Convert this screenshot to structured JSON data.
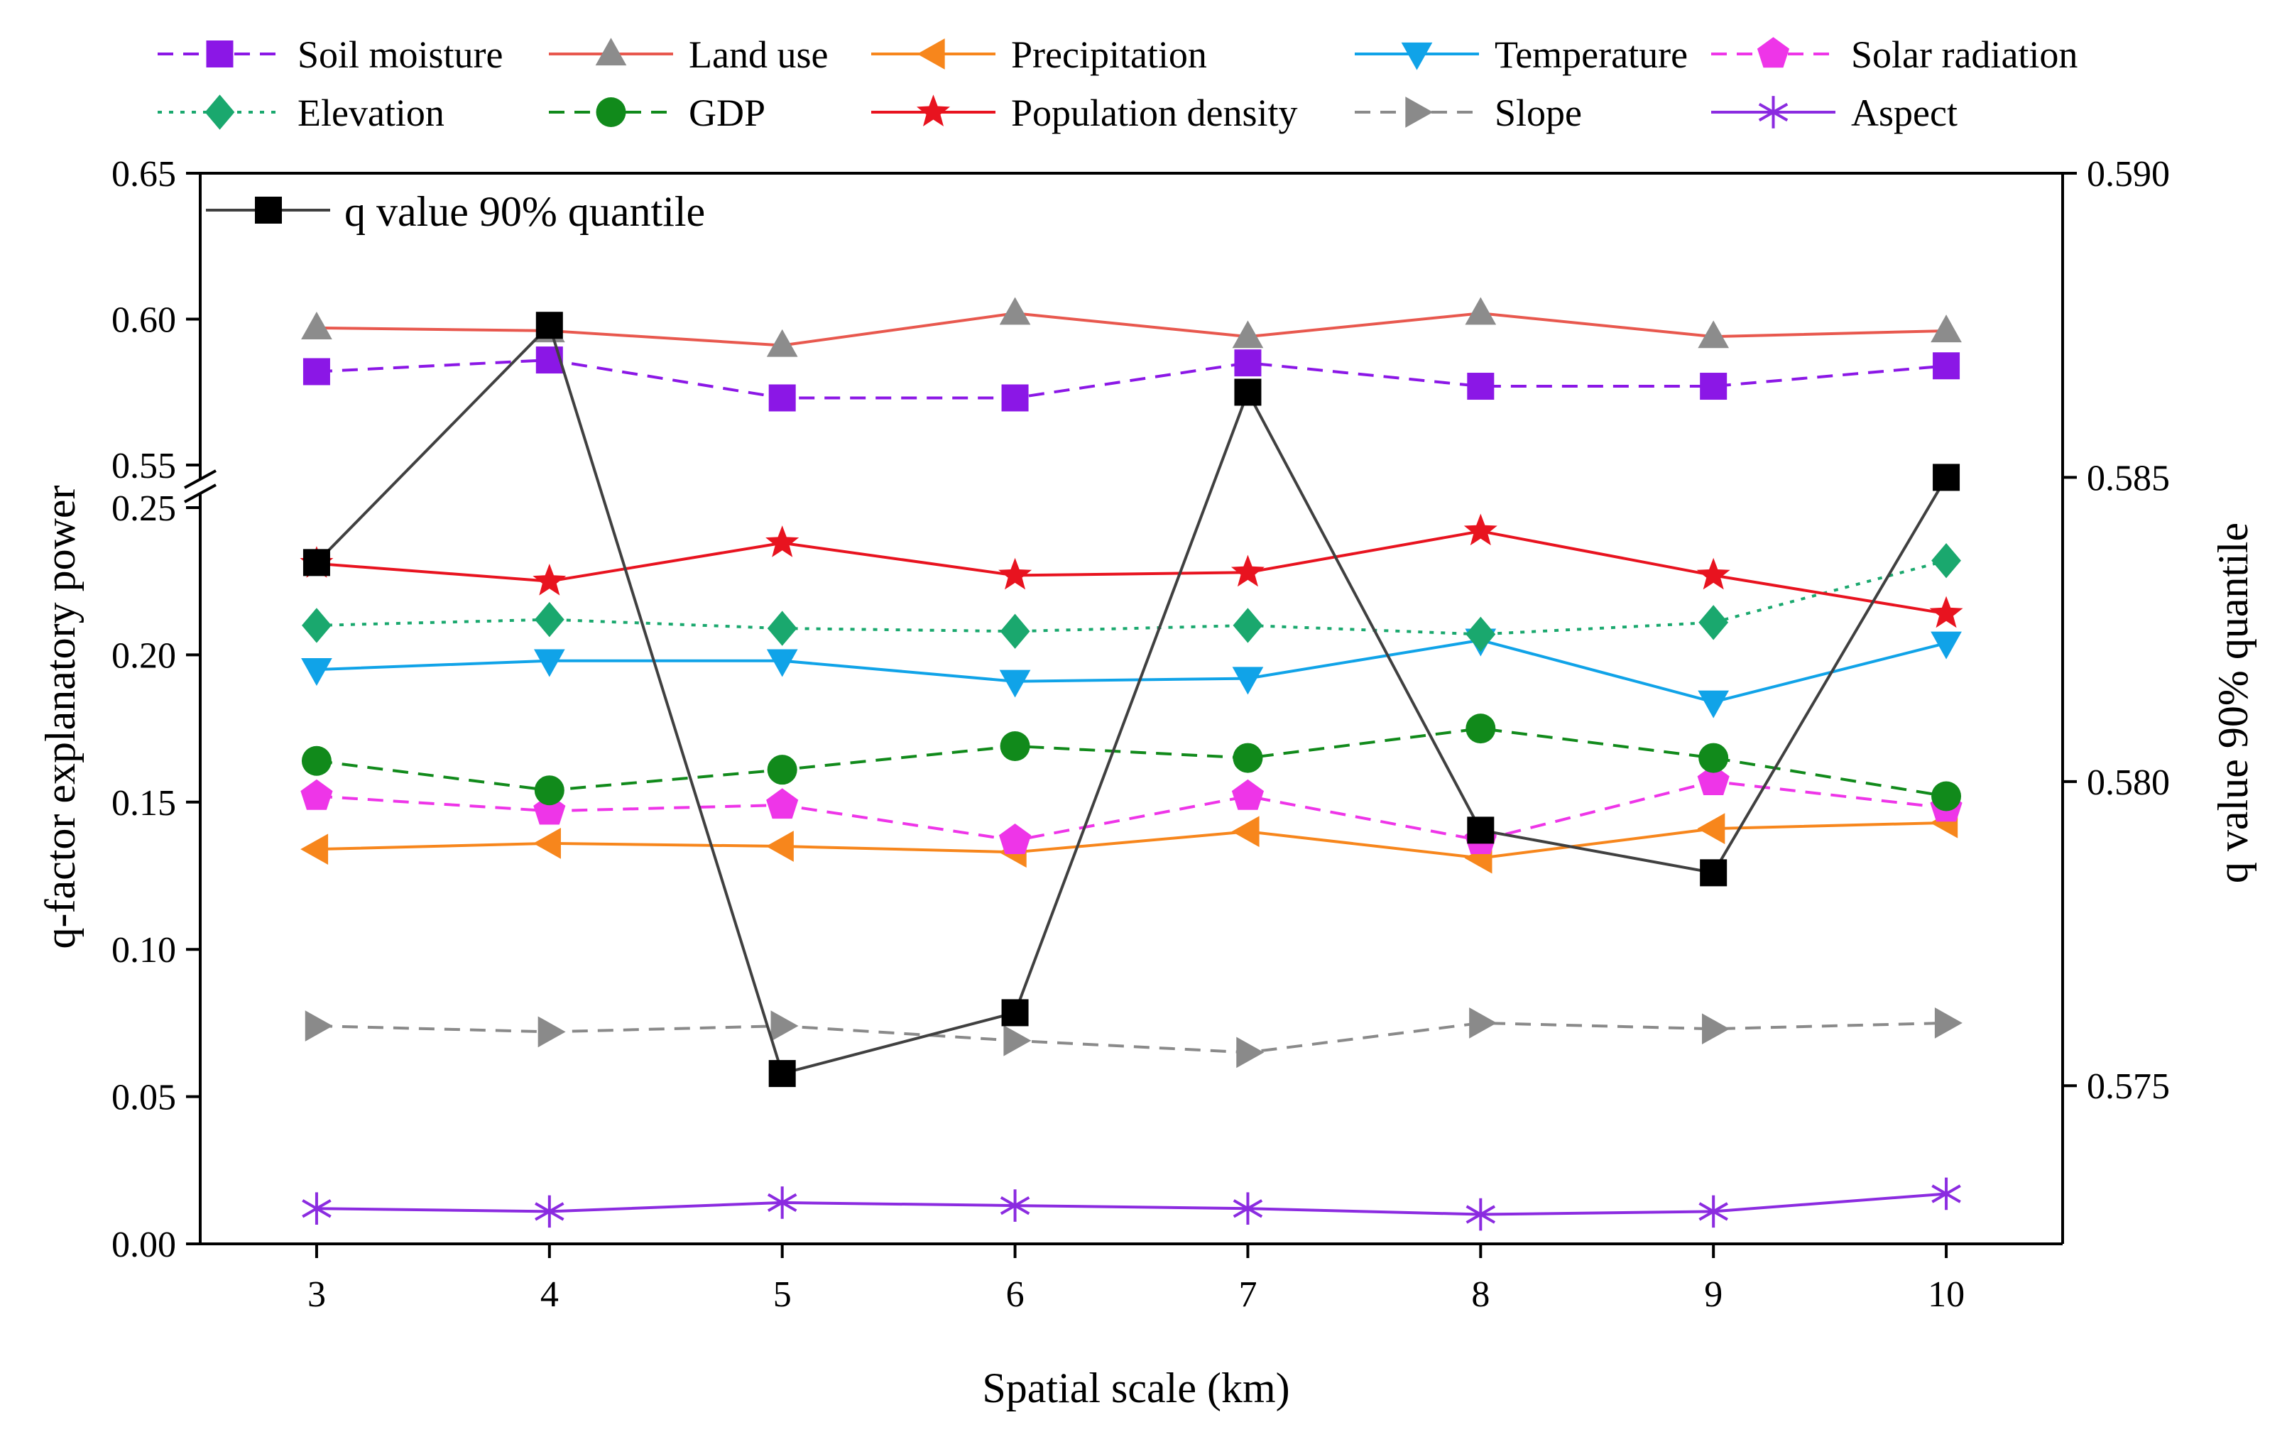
{
  "chart_data": {
    "type": "line",
    "x": [
      3,
      4,
      5,
      6,
      7,
      8,
      9,
      10
    ],
    "xlabel": "Spatial scale (km)",
    "ylabel_left": "q-factor explanatory power",
    "ylabel_right": "q value 90% quantile",
    "left_axis": {
      "lower_segment": {
        "range": [
          0.0,
          0.25
        ],
        "ticks": [
          "0.00",
          "0.05",
          "0.10",
          "0.15",
          "0.20",
          "0.25"
        ]
      },
      "upper_segment": {
        "range": [
          0.55,
          0.65
        ],
        "ticks": [
          "0.55",
          "0.60",
          "0.65"
        ]
      },
      "break": "between 0.25 and 0.55"
    },
    "right_axis": {
      "range": [
        0.5724,
        0.59
      ],
      "ticks": [
        "0.575",
        "0.580",
        "0.585",
        "0.590"
      ]
    },
    "x_ticks": [
      "3",
      "4",
      "5",
      "6",
      "7",
      "8",
      "9",
      "10"
    ],
    "series": [
      {
        "name": "Soil moisture",
        "color": "#8b17e6",
        "dash": "dashed",
        "marker": "square",
        "axis": "left",
        "values": [
          0.582,
          0.586,
          0.573,
          0.573,
          0.585,
          0.577,
          0.577,
          0.584
        ]
      },
      {
        "name": "Land use",
        "color": "#e8584e",
        "dash": "solid",
        "marker": "triangle-up",
        "markerColor": "#8c8c8c",
        "axis": "left",
        "values": [
          0.597,
          0.596,
          0.591,
          0.602,
          0.594,
          0.602,
          0.594,
          0.596
        ]
      },
      {
        "name": "Precipitation",
        "color": "#f7861c",
        "dash": "solid",
        "marker": "triangle-left",
        "axis": "left",
        "values": [
          0.134,
          0.136,
          0.135,
          0.133,
          0.14,
          0.131,
          0.141,
          0.143
        ]
      },
      {
        "name": "Temperature",
        "color": "#10a3e8",
        "dash": "solid",
        "marker": "triangle-down",
        "axis": "left",
        "values": [
          0.195,
          0.198,
          0.198,
          0.191,
          0.192,
          0.205,
          0.184,
          0.204
        ]
      },
      {
        "name": "Solar radiation",
        "color": "#ee35e8",
        "dash": "dashed",
        "marker": "pentagon",
        "axis": "left",
        "values": [
          0.152,
          0.147,
          0.149,
          0.137,
          0.152,
          0.137,
          0.157,
          0.148
        ]
      },
      {
        "name": "Elevation",
        "color": "#1aa86e",
        "dash": "dotted",
        "marker": "diamond",
        "axis": "left",
        "values": [
          0.21,
          0.212,
          0.209,
          0.208,
          0.21,
          0.207,
          0.211,
          0.232
        ]
      },
      {
        "name": "GDP",
        "color": "#118a1b",
        "dash": "dashed",
        "marker": "circle",
        "axis": "left",
        "values": [
          0.164,
          0.154,
          0.161,
          0.169,
          0.165,
          0.175,
          0.165,
          0.152
        ]
      },
      {
        "name": "Population density",
        "color": "#e8131f",
        "dash": "solid",
        "marker": "star",
        "axis": "left",
        "values": [
          0.231,
          0.225,
          0.238,
          0.227,
          0.228,
          0.242,
          0.227,
          0.214
        ]
      },
      {
        "name": "Slope",
        "color": "#8a8a8a",
        "dash": "dashed",
        "marker": "triangle-right",
        "axis": "left",
        "values": [
          0.074,
          0.072,
          0.074,
          0.069,
          0.065,
          0.075,
          0.073,
          0.075
        ]
      },
      {
        "name": "Aspect",
        "color": "#8b2be0",
        "dash": "solid",
        "marker": "asterisk",
        "axis": "left",
        "values": [
          0.012,
          0.011,
          0.014,
          0.013,
          0.012,
          0.01,
          0.011,
          0.017
        ]
      },
      {
        "name": "q value 90% quantile",
        "color": "#404040",
        "markerColor": "#000000",
        "dash": "solid",
        "marker": "square",
        "axis": "right",
        "values": [
          0.5836,
          0.5875,
          0.5752,
          0.5762,
          0.5864,
          0.5792,
          0.5785,
          0.585
        ]
      }
    ]
  }
}
